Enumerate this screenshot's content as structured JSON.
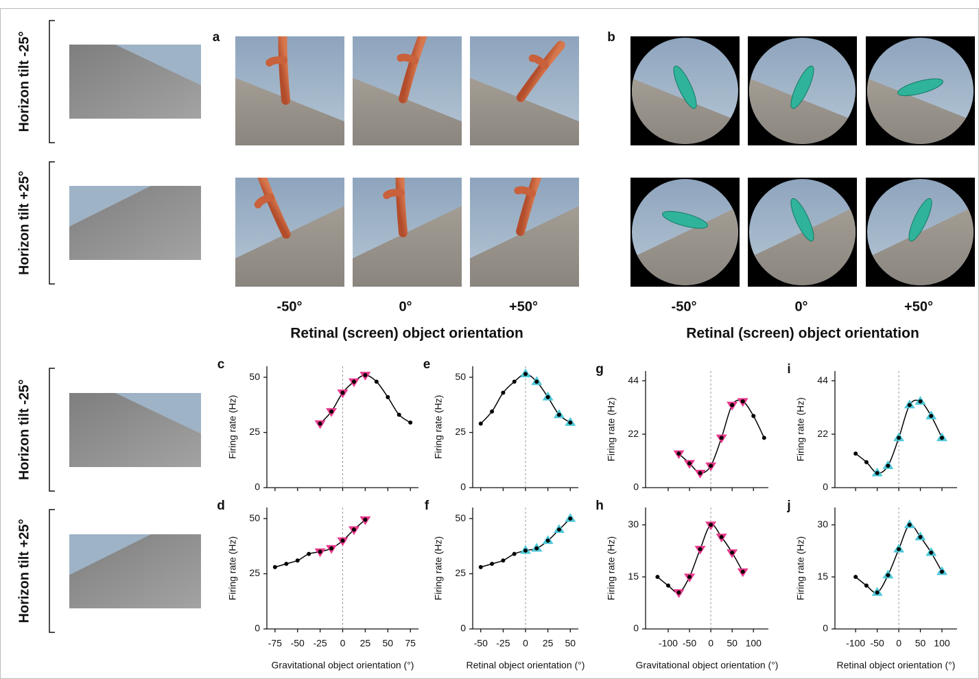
{
  "figure": {
    "panels": [
      "a",
      "b"
    ],
    "row_labels": [
      "Horizon tilt -25°",
      "Horizon tilt +25°",
      "Horizon tilt -25°",
      "Horizon tilt +25°"
    ],
    "orientation_labels": [
      "-50°",
      "0°",
      "+50°"
    ],
    "orientation_title": "Retinal (screen) object orientation"
  },
  "chart_data": [
    {
      "type": "line",
      "panel": "c",
      "ylabel": "Firing rate (Hz)",
      "xlim": [
        -84,
        84
      ],
      "ylim": [
        0,
        55
      ],
      "xticks": [
        -75,
        -50,
        -25,
        0,
        25,
        50,
        75
      ],
      "xtick_labels": false,
      "yticks": [
        0,
        25,
        50
      ],
      "xline": 0,
      "x": [
        -25,
        -12.5,
        0,
        12.5,
        25,
        37.5,
        50,
        62.5,
        75
      ],
      "series": [
        {
          "color": "#000000",
          "line": true,
          "marker": "circle",
          "values": [
            29,
            34.5,
            43,
            48,
            51,
            48,
            41,
            33,
            29.5
          ]
        },
        {
          "color": "#e8398b",
          "line": false,
          "marker": "triangle-down",
          "values": [
            29,
            34.5,
            43,
            48,
            51,
            null,
            null,
            null,
            null
          ]
        }
      ]
    },
    {
      "type": "line",
      "panel": "d",
      "ylabel": "Firing rate (Hz)",
      "xlabel": "Gravitational object orientation (°)",
      "xlim": [
        -84,
        84
      ],
      "ylim": [
        0,
        55
      ],
      "xticks": [
        -75,
        -50,
        -25,
        0,
        25,
        50,
        75
      ],
      "xtick_labels": true,
      "yticks": [
        0,
        25,
        50
      ],
      "xline": 0,
      "x": [
        -75,
        -62.5,
        -50,
        -37.5,
        -25,
        -12.5,
        0,
        12.5,
        25
      ],
      "series": [
        {
          "color": "#000000",
          "line": true,
          "marker": "circle",
          "values": [
            28,
            29.5,
            31,
            34,
            35,
            36.5,
            40,
            45,
            49.5
          ]
        },
        {
          "color": "#e8398b",
          "line": false,
          "marker": "triangle-down",
          "values": [
            null,
            null,
            null,
            null,
            35,
            36.5,
            40,
            45,
            49.5
          ]
        }
      ]
    },
    {
      "type": "line",
      "panel": "e",
      "ylabel": "Firing rate (Hz)",
      "xlim": [
        -59,
        59
      ],
      "ylim": [
        0,
        55
      ],
      "xticks": [
        -50,
        -25,
        0,
        25,
        50
      ],
      "xtick_labels": false,
      "yticks": [
        0,
        25,
        50
      ],
      "xline": 0,
      "x": [
        -50,
        -37.5,
        -25,
        -12.5,
        0,
        12.5,
        25,
        37.5,
        50
      ],
      "series": [
        {
          "color": "#000000",
          "line": true,
          "marker": "circle",
          "values": [
            29,
            34.5,
            43,
            48,
            51.5,
            48,
            41,
            33,
            29.5
          ]
        },
        {
          "color": "#4fc8d8",
          "line": false,
          "marker": "triangle-up",
          "values": [
            null,
            null,
            null,
            null,
            51.5,
            48,
            41,
            33,
            29.5
          ]
        }
      ]
    },
    {
      "type": "line",
      "panel": "f",
      "ylabel": "Firing rate (Hz)",
      "xlabel": "Retinal object orientation (°)",
      "xlim": [
        -59,
        59
      ],
      "ylim": [
        0,
        55
      ],
      "xticks": [
        -50,
        -25,
        0,
        25,
        50
      ],
      "xtick_labels": true,
      "yticks": [
        0,
        25,
        50
      ],
      "xline": 0,
      "x": [
        -50,
        -37.5,
        -25,
        -12.5,
        0,
        12.5,
        25,
        37.5,
        50
      ],
      "series": [
        {
          "color": "#000000",
          "line": true,
          "marker": "circle",
          "values": [
            28,
            29.5,
            31,
            34,
            35.5,
            36.5,
            40,
            45,
            50
          ]
        },
        {
          "color": "#4fc8d8",
          "line": false,
          "marker": "triangle-up",
          "values": [
            null,
            null,
            null,
            null,
            35.5,
            36.5,
            40,
            45,
            50
          ]
        }
      ]
    },
    {
      "type": "line",
      "panel": "g",
      "ylabel": "Firing rate (Hz)",
      "xlim": [
        -153,
        135
      ],
      "ylim": [
        0,
        48
      ],
      "xticks": [
        -100,
        -50,
        0,
        50,
        100
      ],
      "xtick_labels": false,
      "yticks": [
        0,
        22,
        44
      ],
      "xline": 0,
      "x": [
        -75,
        -50,
        -25,
        0,
        25,
        50,
        75,
        100,
        125
      ],
      "series": [
        {
          "color": "#000000",
          "line": true,
          "marker": "circle",
          "values": [
            14,
            10,
            6,
            9,
            20.5,
            34,
            35.5,
            29.5,
            20.5
          ]
        },
        {
          "color": "#e8398b",
          "line": false,
          "marker": "triangle-down",
          "values": [
            14,
            10,
            6,
            9,
            20.5,
            34,
            35.5,
            null,
            null
          ]
        }
      ]
    },
    {
      "type": "line",
      "panel": "h",
      "ylabel": "Firing rate (Hz)",
      "xlabel": "Gravitational object orientation (°)",
      "xlim": [
        -153,
        135
      ],
      "ylim": [
        0,
        35
      ],
      "xticks": [
        -100,
        -50,
        0,
        50,
        100
      ],
      "xtick_labels": true,
      "yticks": [
        0,
        15,
        30
      ],
      "xline": 0,
      "x": [
        -125,
        -100,
        -75,
        -50,
        -25,
        0,
        25,
        50,
        75
      ],
      "series": [
        {
          "color": "#000000",
          "line": true,
          "marker": "circle",
          "values": [
            15,
            12.5,
            10.5,
            15,
            23,
            30,
            26.5,
            22,
            16.5
          ]
        },
        {
          "color": "#e8398b",
          "line": false,
          "marker": "triangle-down",
          "values": [
            null,
            null,
            10.5,
            15,
            23,
            30,
            26.5,
            22,
            16.5
          ]
        }
      ]
    },
    {
      "type": "line",
      "panel": "i",
      "ylabel": "Firing rate (Hz)",
      "xlim": [
        -148,
        135
      ],
      "ylim": [
        0,
        48
      ],
      "xticks": [
        -100,
        -50,
        0,
        50,
        100
      ],
      "xtick_labels": false,
      "yticks": [
        0,
        22,
        44
      ],
      "xline": 0,
      "x": [
        -100,
        -75,
        -50,
        -25,
        0,
        25,
        50,
        75,
        100
      ],
      "series": [
        {
          "color": "#000000",
          "line": true,
          "marker": "circle",
          "values": [
            14,
            10.5,
            6,
            9,
            20.5,
            34,
            35.5,
            29.5,
            20.5
          ]
        },
        {
          "color": "#4fc8d8",
          "line": false,
          "marker": "triangle-up",
          "values": [
            null,
            null,
            6,
            9,
            20.5,
            34,
            35.5,
            29.5,
            20.5
          ]
        }
      ]
    },
    {
      "type": "line",
      "panel": "j",
      "ylabel": "Firing rate (Hz)",
      "xlabel": "Retinal object orientation (°)",
      "xlim": [
        -148,
        135
      ],
      "ylim": [
        0,
        35
      ],
      "xticks": [
        -100,
        -50,
        0,
        50,
        100
      ],
      "xtick_labels": true,
      "yticks": [
        0,
        15,
        30
      ],
      "xline": 0,
      "x": [
        -100,
        -75,
        -50,
        -25,
        0,
        25,
        50,
        75,
        100
      ],
      "series": [
        {
          "color": "#000000",
          "line": true,
          "marker": "circle",
          "values": [
            15,
            12.5,
            10.5,
            15.5,
            23,
            30,
            26.5,
            22,
            16.5
          ]
        },
        {
          "color": "#4fc8d8",
          "line": false,
          "marker": "triangle-up",
          "values": [
            null,
            null,
            10.5,
            15.5,
            23,
            30,
            26.5,
            22,
            16.5
          ]
        }
      ]
    }
  ]
}
